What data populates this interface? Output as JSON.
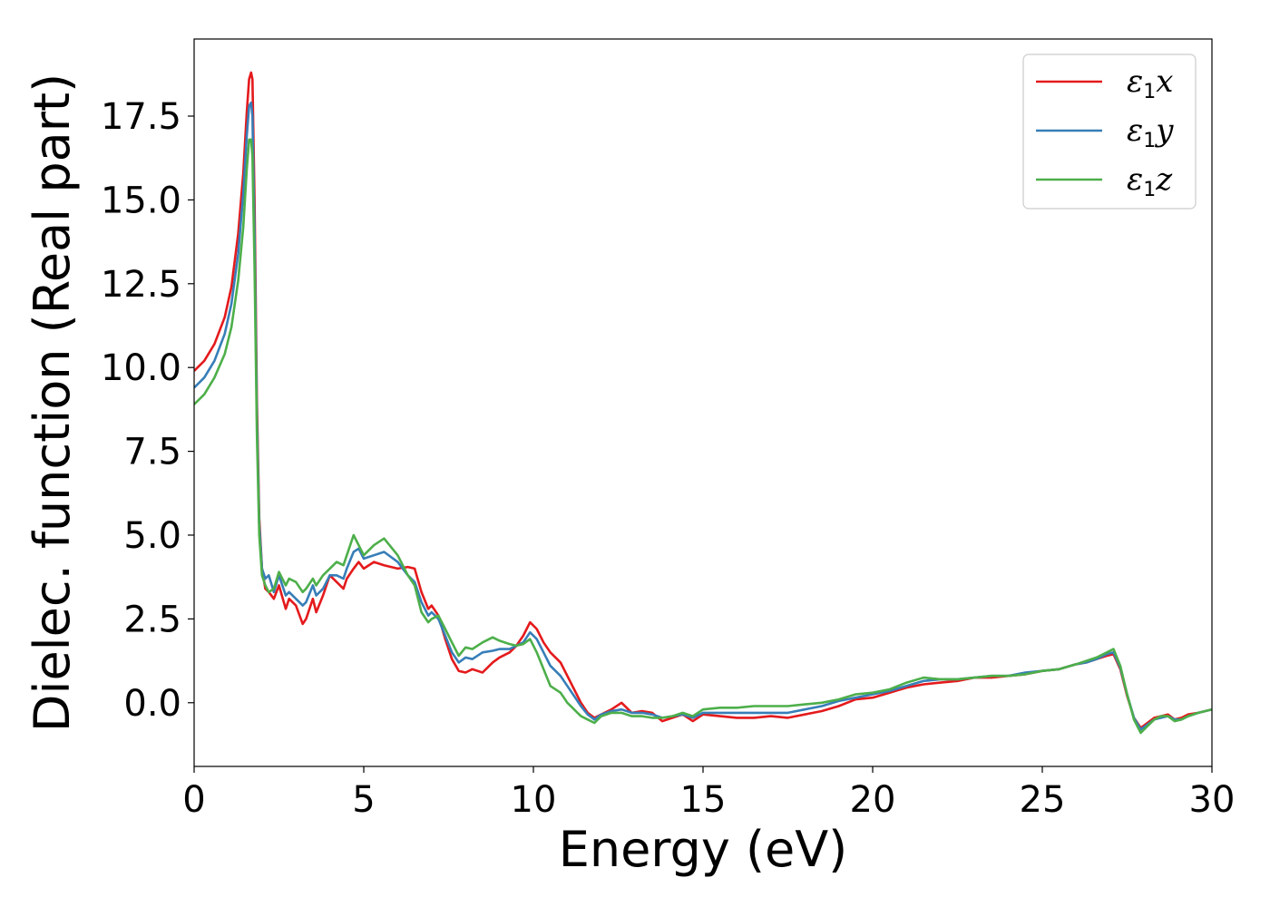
{
  "chart_data": {
    "type": "line",
    "title": "",
    "xlabel": "Energy (eV)",
    "ylabel": "Dielec. function (Real part)",
    "xlim": [
      0,
      30
    ],
    "ylim": [
      -1.9,
      19.8
    ],
    "xticks": [
      0,
      5,
      10,
      15,
      20,
      25,
      30
    ],
    "xtick_labels": [
      "0",
      "5",
      "10",
      "15",
      "20",
      "25",
      "30"
    ],
    "yticks": [
      0.0,
      2.5,
      5.0,
      7.5,
      10.0,
      12.5,
      15.0,
      17.5
    ],
    "ytick_labels": [
      "0.0",
      "2.5",
      "5.0",
      "7.5",
      "10.0",
      "12.5",
      "15.0",
      "17.5"
    ],
    "grid": false,
    "legend_position": "top-right",
    "series": [
      {
        "name": "ε1x",
        "legend_base": "ε",
        "legend_sub": "1",
        "legend_var": "x",
        "color": "#e41a1c",
        "x": [
          0,
          0.3,
          0.6,
          0.9,
          1.1,
          1.3,
          1.45,
          1.55,
          1.62,
          1.68,
          1.72,
          1.78,
          1.85,
          1.92,
          2.0,
          2.1,
          2.2,
          2.35,
          2.5,
          2.7,
          2.8,
          3.0,
          3.2,
          3.3,
          3.5,
          3.6,
          3.8,
          4.0,
          4.2,
          4.4,
          4.5,
          4.7,
          4.85,
          5.0,
          5.3,
          5.6,
          6.0,
          6.3,
          6.5,
          6.7,
          6.9,
          7.0,
          7.2,
          7.4,
          7.6,
          7.8,
          8.0,
          8.2,
          8.5,
          8.8,
          9.0,
          9.3,
          9.5,
          9.7,
          9.9,
          10.1,
          10.3,
          10.5,
          10.8,
          11.0,
          11.2,
          11.4,
          11.6,
          11.8,
          12.0,
          12.3,
          12.6,
          12.9,
          13.2,
          13.5,
          13.8,
          14.1,
          14.4,
          14.7,
          15.0,
          15.5,
          16.0,
          16.5,
          17.0,
          17.5,
          18.0,
          18.5,
          19.0,
          19.5,
          20.0,
          20.5,
          21.0,
          21.5,
          22.0,
          22.5,
          23.0,
          23.5,
          24.0,
          24.5,
          25.0,
          25.5,
          26.0,
          26.3,
          26.6,
          26.9,
          27.1,
          27.3,
          27.5,
          27.7,
          27.9,
          28.1,
          28.3,
          28.5,
          28.7,
          28.9,
          29.1,
          29.3,
          29.6,
          30.0
        ],
        "y": [
          9.9,
          10.2,
          10.7,
          11.5,
          12.4,
          14.0,
          15.8,
          17.6,
          18.6,
          18.8,
          18.6,
          15.0,
          9.0,
          5.5,
          4.0,
          3.4,
          3.3,
          3.1,
          3.5,
          2.8,
          3.1,
          2.9,
          2.35,
          2.5,
          3.1,
          2.7,
          3.2,
          3.8,
          3.6,
          3.4,
          3.7,
          4.0,
          4.2,
          4.0,
          4.2,
          4.1,
          4.0,
          4.05,
          4.0,
          3.3,
          2.8,
          2.9,
          2.6,
          1.9,
          1.3,
          0.95,
          0.9,
          1.0,
          0.9,
          1.2,
          1.35,
          1.5,
          1.7,
          2.0,
          2.4,
          2.2,
          1.8,
          1.5,
          1.2,
          0.8,
          0.4,
          0.0,
          -0.3,
          -0.45,
          -0.35,
          -0.2,
          0.0,
          -0.3,
          -0.25,
          -0.3,
          -0.55,
          -0.45,
          -0.35,
          -0.55,
          -0.35,
          -0.4,
          -0.45,
          -0.45,
          -0.4,
          -0.45,
          -0.35,
          -0.25,
          -0.1,
          0.1,
          0.15,
          0.3,
          0.45,
          0.55,
          0.6,
          0.65,
          0.75,
          0.75,
          0.8,
          0.85,
          0.95,
          1.0,
          1.15,
          1.2,
          1.3,
          1.4,
          1.45,
          1.0,
          0.2,
          -0.45,
          -0.75,
          -0.6,
          -0.45,
          -0.4,
          -0.35,
          -0.5,
          -0.45,
          -0.35,
          -0.3,
          -0.2
        ]
      },
      {
        "name": "ε1y",
        "legend_base": "ε",
        "legend_sub": "1",
        "legend_var": "y",
        "color": "#377eb8",
        "x": [
          0,
          0.3,
          0.6,
          0.9,
          1.1,
          1.3,
          1.45,
          1.55,
          1.62,
          1.68,
          1.72,
          1.78,
          1.85,
          1.92,
          2.0,
          2.1,
          2.2,
          2.35,
          2.5,
          2.7,
          2.8,
          3.0,
          3.2,
          3.3,
          3.5,
          3.6,
          3.8,
          4.0,
          4.2,
          4.4,
          4.5,
          4.7,
          4.85,
          5.0,
          5.3,
          5.6,
          6.0,
          6.3,
          6.5,
          6.7,
          6.9,
          7.0,
          7.2,
          7.4,
          7.6,
          7.8,
          8.0,
          8.2,
          8.5,
          8.8,
          9.0,
          9.3,
          9.5,
          9.7,
          9.9,
          10.1,
          10.3,
          10.5,
          10.8,
          11.0,
          11.2,
          11.4,
          11.6,
          11.8,
          12.0,
          12.3,
          12.6,
          12.9,
          13.2,
          13.5,
          13.8,
          14.1,
          14.4,
          14.7,
          15.0,
          15.5,
          16.0,
          16.5,
          17.0,
          17.5,
          18.0,
          18.5,
          19.0,
          19.5,
          20.0,
          20.5,
          21.0,
          21.5,
          22.0,
          22.5,
          23.0,
          23.5,
          24.0,
          24.5,
          25.0,
          25.5,
          26.0,
          26.3,
          26.6,
          26.9,
          27.1,
          27.3,
          27.5,
          27.7,
          27.9,
          28.1,
          28.3,
          28.5,
          28.7,
          28.9,
          29.1,
          29.3,
          29.6,
          30.0
        ],
        "y": [
          9.4,
          9.7,
          10.2,
          11.0,
          11.9,
          13.4,
          15.2,
          16.9,
          17.8,
          17.9,
          17.5,
          14.0,
          8.5,
          5.3,
          4.0,
          3.7,
          3.8,
          3.3,
          3.8,
          3.2,
          3.3,
          3.1,
          2.9,
          3.0,
          3.5,
          3.2,
          3.4,
          3.8,
          3.8,
          3.7,
          4.0,
          4.5,
          4.6,
          4.3,
          4.4,
          4.5,
          4.2,
          3.8,
          3.6,
          3.0,
          2.6,
          2.7,
          2.5,
          2.0,
          1.5,
          1.2,
          1.35,
          1.3,
          1.5,
          1.55,
          1.6,
          1.6,
          1.7,
          1.8,
          2.1,
          1.9,
          1.5,
          1.1,
          0.8,
          0.5,
          0.2,
          -0.1,
          -0.35,
          -0.5,
          -0.35,
          -0.25,
          -0.2,
          -0.3,
          -0.3,
          -0.35,
          -0.45,
          -0.4,
          -0.35,
          -0.45,
          -0.3,
          -0.3,
          -0.3,
          -0.3,
          -0.3,
          -0.3,
          -0.2,
          -0.1,
          0.05,
          0.15,
          0.25,
          0.35,
          0.5,
          0.65,
          0.7,
          0.7,
          0.75,
          0.8,
          0.8,
          0.9,
          0.95,
          1.0,
          1.15,
          1.2,
          1.3,
          1.45,
          1.5,
          1.05,
          0.25,
          -0.45,
          -0.8,
          -0.65,
          -0.5,
          -0.45,
          -0.4,
          -0.5,
          -0.5,
          -0.4,
          -0.3,
          -0.2
        ]
      },
      {
        "name": "ε1z",
        "legend_base": "ε",
        "legend_sub": "1",
        "legend_var": "z",
        "color": "#4daf4a",
        "x": [
          0,
          0.3,
          0.6,
          0.9,
          1.1,
          1.3,
          1.45,
          1.55,
          1.62,
          1.68,
          1.72,
          1.78,
          1.85,
          1.92,
          2.0,
          2.1,
          2.2,
          2.35,
          2.5,
          2.7,
          2.8,
          3.0,
          3.2,
          3.3,
          3.5,
          3.6,
          3.8,
          4.0,
          4.2,
          4.4,
          4.5,
          4.7,
          4.85,
          5.0,
          5.3,
          5.6,
          6.0,
          6.3,
          6.5,
          6.7,
          6.9,
          7.0,
          7.2,
          7.4,
          7.6,
          7.8,
          8.0,
          8.2,
          8.5,
          8.8,
          9.0,
          9.3,
          9.5,
          9.7,
          9.9,
          10.1,
          10.3,
          10.5,
          10.8,
          11.0,
          11.2,
          11.4,
          11.6,
          11.8,
          12.0,
          12.3,
          12.6,
          12.9,
          13.2,
          13.5,
          13.8,
          14.1,
          14.4,
          14.7,
          15.0,
          15.5,
          16.0,
          16.5,
          17.0,
          17.5,
          18.0,
          18.5,
          19.0,
          19.5,
          20.0,
          20.5,
          21.0,
          21.5,
          22.0,
          22.5,
          23.0,
          23.5,
          24.0,
          24.5,
          25.0,
          25.5,
          26.0,
          26.3,
          26.6,
          26.9,
          27.1,
          27.3,
          27.5,
          27.7,
          27.9,
          28.1,
          28.3,
          28.5,
          28.7,
          28.9,
          29.1,
          29.3,
          29.6,
          30.0
        ],
        "y": [
          8.9,
          9.2,
          9.7,
          10.4,
          11.2,
          12.6,
          14.2,
          15.9,
          16.8,
          16.8,
          16.3,
          13.0,
          8.0,
          5.0,
          3.8,
          3.5,
          3.3,
          3.4,
          3.9,
          3.5,
          3.7,
          3.6,
          3.3,
          3.4,
          3.7,
          3.5,
          3.8,
          4.0,
          4.2,
          4.1,
          4.4,
          5.0,
          4.7,
          4.4,
          4.7,
          4.9,
          4.4,
          3.8,
          3.5,
          2.7,
          2.4,
          2.5,
          2.6,
          2.2,
          1.8,
          1.4,
          1.65,
          1.6,
          1.8,
          1.95,
          1.85,
          1.75,
          1.7,
          1.75,
          1.9,
          1.5,
          1.0,
          0.5,
          0.3,
          0.0,
          -0.2,
          -0.4,
          -0.5,
          -0.6,
          -0.4,
          -0.3,
          -0.3,
          -0.4,
          -0.4,
          -0.45,
          -0.45,
          -0.4,
          -0.3,
          -0.4,
          -0.2,
          -0.15,
          -0.15,
          -0.1,
          -0.1,
          -0.1,
          -0.05,
          0.0,
          0.1,
          0.25,
          0.3,
          0.4,
          0.6,
          0.75,
          0.7,
          0.7,
          0.75,
          0.8,
          0.8,
          0.85,
          0.95,
          1.0,
          1.15,
          1.25,
          1.35,
          1.5,
          1.6,
          1.1,
          0.25,
          -0.5,
          -0.9,
          -0.7,
          -0.5,
          -0.4,
          -0.4,
          -0.55,
          -0.5,
          -0.4,
          -0.3,
          -0.2
        ]
      }
    ]
  }
}
